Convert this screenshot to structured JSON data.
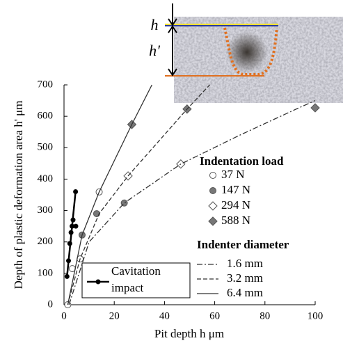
{
  "chart_data": {
    "type": "scatter",
    "x_label": "Pit depth  h μm",
    "y_label": "Depth of plastic deformation area  h' μm",
    "xlim": [
      0,
      100
    ],
    "xticks": [
      0,
      20,
      40,
      60,
      80,
      100
    ],
    "ylim": [
      0,
      700
    ],
    "yticks": [
      0,
      100,
      200,
      300,
      400,
      500,
      600,
      700
    ],
    "grid": false,
    "annotations": [
      "h",
      "h'"
    ],
    "legend_titles": [
      "Indentation load",
      "Indenter diameter"
    ],
    "series": [
      {
        "name": "37 N",
        "marker": "circle",
        "color": "#ffffff",
        "x": [
          1.5,
          3.3,
          6.4,
          14
        ],
        "values": [
          0,
          115,
          146,
          359
        ]
      },
      {
        "name": "147 N",
        "marker": "circle",
        "color": "#777777",
        "x": [
          7.2,
          13,
          24
        ],
        "values": [
          222,
          290,
          324
        ]
      },
      {
        "name": "294 N",
        "marker": "diamond",
        "color": "#ffffff",
        "x": [
          25.5,
          46.5
        ],
        "values": [
          410,
          448
        ]
      },
      {
        "name": "588 N",
        "marker": "diamond",
        "color": "#777777",
        "x": [
          27,
          49,
          100
        ],
        "values": [
          574,
          623,
          627
        ]
      },
      {
        "name": "1.6 mm",
        "marker": "none",
        "dash": "8 3 2 3",
        "color": "#333333",
        "x": [
          2,
          10,
          24,
          46.5,
          70,
          93,
          100
        ],
        "values": [
          0,
          200,
          324,
          448,
          540,
          625,
          650
        ]
      },
      {
        "name": "3.2 mm",
        "marker": "none",
        "dash": "6 3",
        "color": "#333333",
        "x": [
          1.5,
          6.4,
          14,
          25.5,
          49,
          58
        ],
        "values": [
          0,
          146,
          290,
          410,
          623,
          700
        ]
      },
      {
        "name": "6.4 mm",
        "marker": "none",
        "dash": "",
        "color": "#333333",
        "x": [
          1.5,
          7.2,
          14,
          27,
          35
        ],
        "values": [
          0,
          222,
          359,
          574,
          700
        ]
      },
      {
        "name": "Cavitation impact",
        "marker": "dot",
        "dash": "",
        "color": "#000000",
        "x": [
          1.2,
          1.8,
          2.3,
          2.8,
          3.2,
          3.6,
          4.7,
          4.6
        ],
        "values": [
          90,
          140,
          195,
          230,
          250,
          270,
          250,
          360
        ]
      }
    ]
  }
}
